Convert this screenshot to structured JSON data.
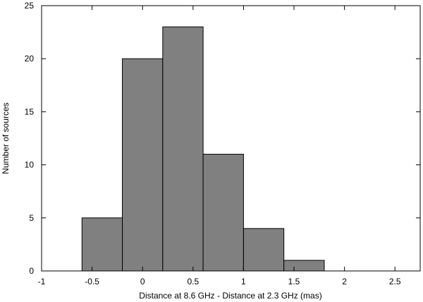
{
  "chart_data": {
    "type": "bar",
    "title": "",
    "xlabel": "Distance at 8.6 GHz  -  Distance at 2.3 GHz  (mas)",
    "ylabel": "Number of sources",
    "xlim": [
      -1,
      2.75
    ],
    "ylim": [
      0,
      25
    ],
    "bins": [
      {
        "from": -0.6,
        "to": -0.2,
        "count": 5
      },
      {
        "from": -0.2,
        "to": 0.2,
        "count": 20
      },
      {
        "from": 0.2,
        "to": 0.6,
        "count": 23
      },
      {
        "from": 0.6,
        "to": 1.0,
        "count": 11
      },
      {
        "from": 1.0,
        "to": 1.4,
        "count": 4
      },
      {
        "from": 1.4,
        "to": 1.8,
        "count": 1
      },
      {
        "from": 1.8,
        "to": 2.2,
        "count": 0
      },
      {
        "from": 2.2,
        "to": 2.6,
        "count": 0
      }
    ],
    "xticks": [
      {
        "value": -1,
        "label": "-1"
      },
      {
        "value": -0.5,
        "label": "-0.5"
      },
      {
        "value": 0,
        "label": "0"
      },
      {
        "value": 0.5,
        "label": "0.5"
      },
      {
        "value": 1,
        "label": "1"
      },
      {
        "value": 1.5,
        "label": "1.5"
      },
      {
        "value": 2,
        "label": "2"
      },
      {
        "value": 2.5,
        "label": "2.5"
      }
    ],
    "yticks": [
      {
        "value": 0,
        "label": "0"
      },
      {
        "value": 5,
        "label": "5"
      },
      {
        "value": 10,
        "label": "10"
      },
      {
        "value": 15,
        "label": "15"
      },
      {
        "value": 20,
        "label": "20"
      },
      {
        "value": 25,
        "label": "25"
      }
    ],
    "grid": false,
    "legend": "none",
    "bar_color": "#808080",
    "bar_edge_color": "#000000"
  }
}
